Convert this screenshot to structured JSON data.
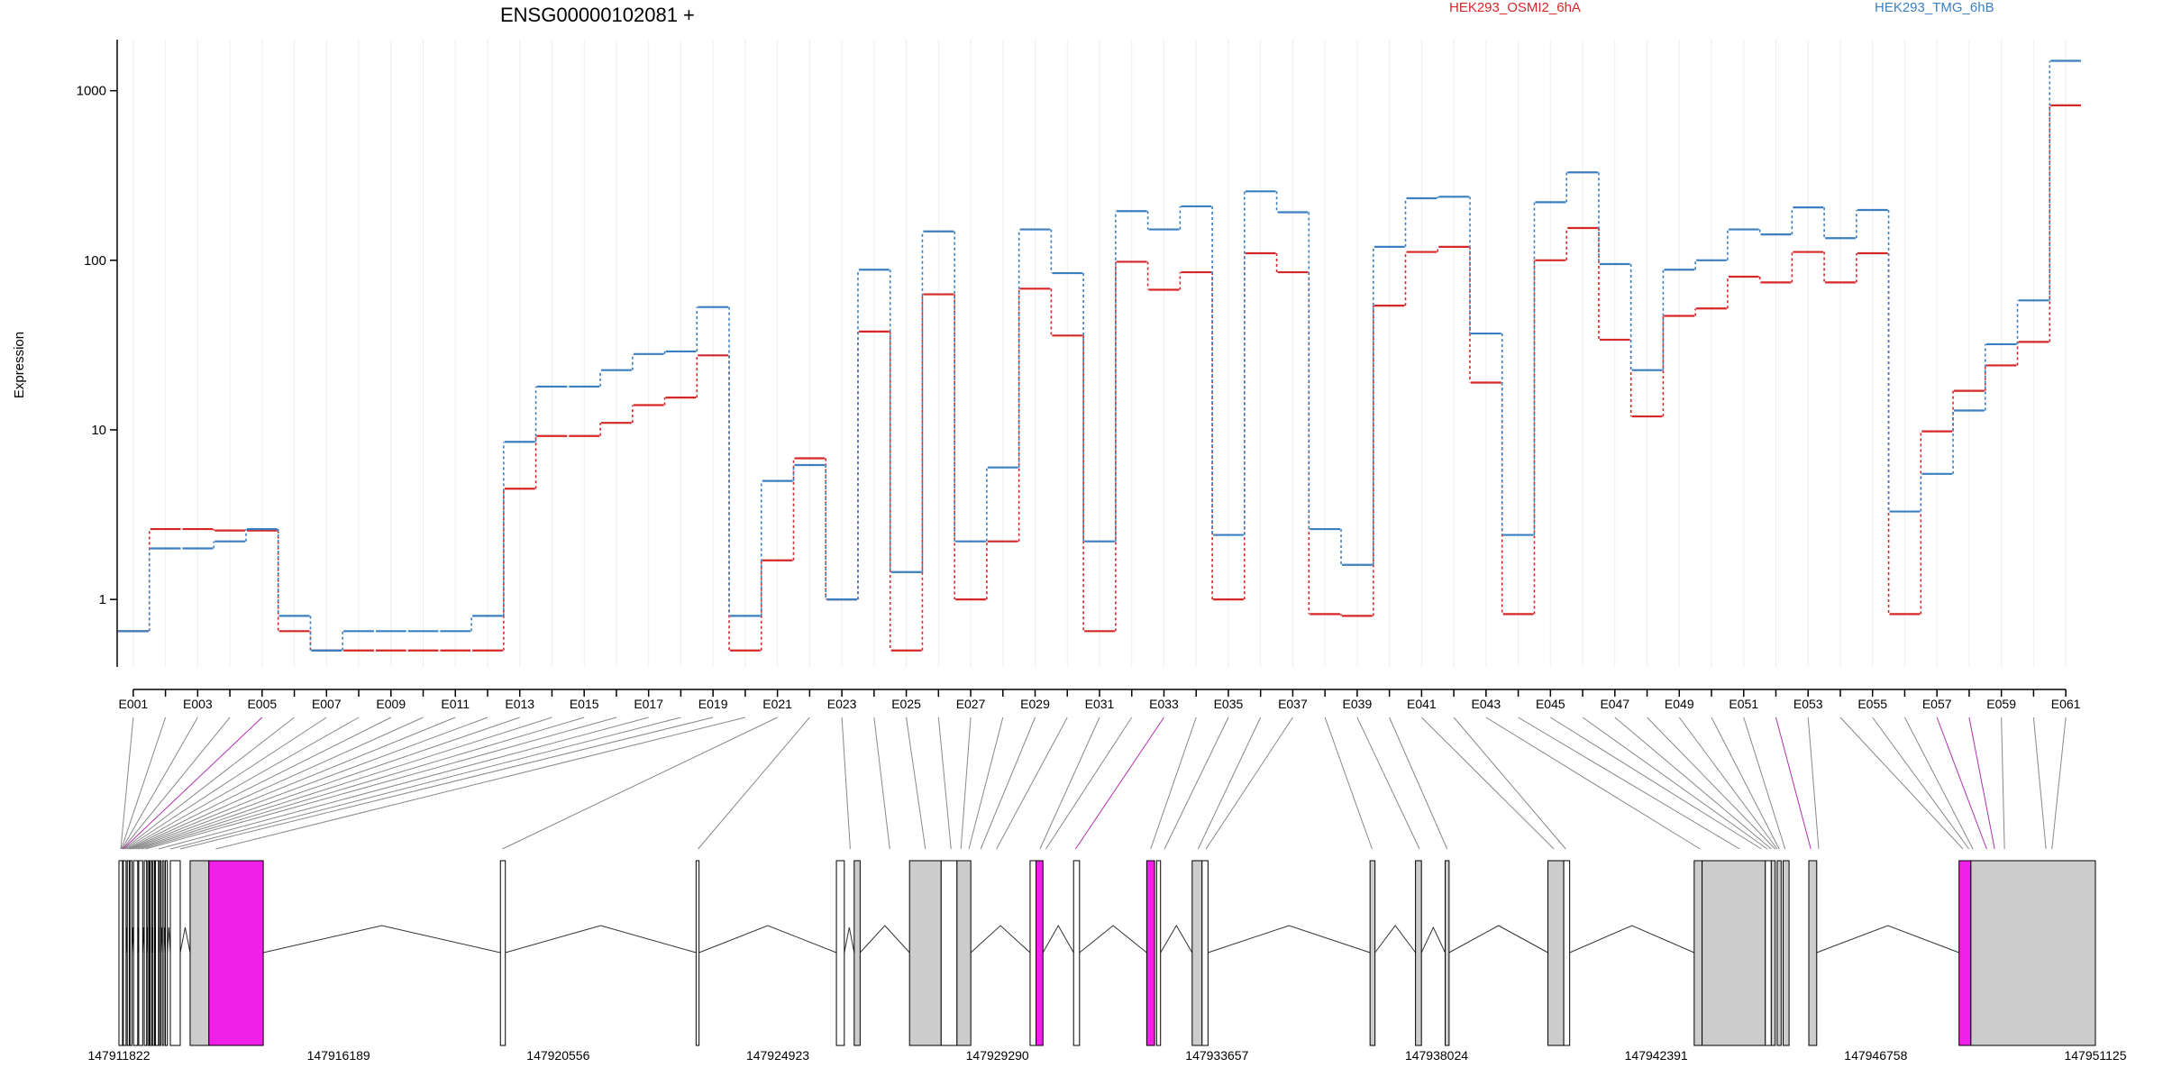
{
  "header": {
    "gene_title": "ENSG00000102081 +",
    "legend": [
      "HEK293_OSMI2_6hA",
      "HEK293_TMG_6hB"
    ]
  },
  "colors": {
    "series_a": "#d62728",
    "series_b": "#3c7fc0",
    "exon_normal": "#cccccc",
    "exon_white": "#ffffff",
    "exon_highlight": "#f020e8",
    "connector": "#888888",
    "connector_highlight": "#b030b0"
  },
  "chart_data": {
    "type": "line",
    "title": "ENSG00000102081 +",
    "ylabel": "Expression",
    "yscale": "log",
    "ylim": [
      0.4,
      2000
    ],
    "yticks": [
      1,
      10,
      100,
      1000
    ],
    "ytick_labels": [
      "1",
      "10",
      "100",
      "1000"
    ],
    "x": [
      "E001",
      "E002",
      "E003",
      "E004",
      "E005",
      "E006",
      "E007",
      "E008",
      "E009",
      "E010",
      "E011",
      "E012",
      "E013",
      "E014",
      "E015",
      "E016",
      "E017",
      "E018",
      "E019",
      "E020",
      "E021",
      "E022",
      "E023",
      "E024",
      "E025",
      "E026",
      "E027",
      "E028",
      "E029",
      "E030",
      "E031",
      "E032",
      "E033",
      "E034",
      "E035",
      "E036",
      "E037",
      "E038",
      "E039",
      "E040",
      "E041",
      "E042",
      "E043",
      "E044",
      "E045",
      "E046",
      "E047",
      "E048",
      "E049",
      "E050",
      "E051",
      "E052",
      "E053",
      "E054",
      "E055",
      "E056",
      "E057",
      "E058",
      "E059",
      "E060",
      "E061"
    ],
    "xtick_labels": [
      "E001",
      "E003",
      "E005",
      "E007",
      "E009",
      "E011",
      "E013",
      "E015",
      "E017",
      "E019",
      "E021",
      "E023",
      "E025",
      "E027",
      "E029",
      "E031",
      "E033",
      "E035",
      "E037",
      "E039",
      "E041",
      "E043",
      "E045",
      "E047",
      "E049",
      "E051",
      "E053",
      "E055",
      "E057",
      "E059",
      "E061"
    ],
    "series": [
      {
        "name": "HEK293_OSMI2_6hA",
        "values": [
          0.65,
          2.6,
          2.6,
          2.55,
          2.55,
          0.65,
          0.5,
          0.5,
          0.5,
          0.5,
          0.5,
          0.5,
          4.5,
          9.2,
          9.2,
          11,
          14,
          15.5,
          27.5,
          0.5,
          1.7,
          6.8,
          1.0,
          38,
          0.5,
          63,
          1.0,
          2.2,
          68,
          36,
          0.65,
          98,
          67,
          85,
          1.0,
          110,
          85,
          0.82,
          0.8,
          54,
          112,
          120,
          19,
          0.82,
          100,
          155,
          34,
          12,
          47,
          52,
          80,
          74,
          112,
          74,
          110,
          0.82,
          9.8,
          17,
          24,
          33,
          820
        ]
      },
      {
        "name": "HEK293_TMG_6hB",
        "values": [
          0.65,
          2.0,
          2.0,
          2.2,
          2.6,
          0.8,
          0.5,
          0.65,
          0.65,
          0.65,
          0.65,
          0.8,
          8.5,
          18,
          18,
          22.5,
          28,
          29,
          53,
          0.8,
          5.0,
          6.2,
          1.0,
          88,
          1.45,
          148,
          2.2,
          6.0,
          152,
          84,
          2.2,
          195,
          152,
          208,
          2.4,
          255,
          192,
          2.6,
          1.6,
          120,
          232,
          237,
          37,
          2.4,
          220,
          330,
          95,
          22.5,
          88,
          100,
          152,
          142,
          205,
          135,
          198,
          3.3,
          5.5,
          13,
          32,
          58,
          1500
        ]
      }
    ]
  },
  "gene_model": {
    "axis_labels": [
      "147911822",
      "147916189",
      "147920556",
      "147924923",
      "147929290",
      "147933657",
      "147938024",
      "147942391",
      "147946758",
      "147951125"
    ],
    "exons": [
      {
        "start": 0.0,
        "end": 0.18,
        "fill": "white"
      },
      {
        "start": 0.22,
        "end": 0.36,
        "fill": "white"
      },
      {
        "start": 0.42,
        "end": 0.52,
        "fill": "white"
      },
      {
        "start": 0.56,
        "end": 0.66,
        "fill": "white"
      },
      {
        "start": 0.74,
        "end": 0.95,
        "fill": "white"
      },
      {
        "start": 1.0,
        "end": 1.2,
        "fill": "white"
      },
      {
        "start": 1.28,
        "end": 1.4,
        "fill": "white"
      },
      {
        "start": 1.46,
        "end": 1.52,
        "fill": "white"
      },
      {
        "start": 1.58,
        "end": 1.66,
        "fill": "white"
      },
      {
        "start": 1.72,
        "end": 1.8,
        "fill": "white"
      },
      {
        "start": 1.85,
        "end": 2.0,
        "fill": "white"
      },
      {
        "start": 2.05,
        "end": 2.12,
        "fill": "white"
      },
      {
        "start": 2.2,
        "end": 2.28,
        "fill": "white"
      },
      {
        "start": 2.35,
        "end": 2.45,
        "fill": "white"
      },
      {
        "start": 2.6,
        "end": 3.1,
        "fill": "white"
      },
      {
        "start": 3.6,
        "end": 4.55,
        "fill": "normal"
      },
      {
        "start": 4.55,
        "end": 7.3,
        "fill": "highlight"
      },
      {
        "start": 19.3,
        "end": 19.55,
        "fill": "white"
      },
      {
        "start": 29.2,
        "end": 29.35,
        "fill": "white"
      },
      {
        "start": 36.3,
        "end": 36.7,
        "fill": "white"
      },
      {
        "start": 37.2,
        "end": 37.5,
        "fill": "normal"
      },
      {
        "start": 40.0,
        "end": 41.6,
        "fill": "normal"
      },
      {
        "start": 41.6,
        "end": 42.4,
        "fill": "white"
      },
      {
        "start": 42.4,
        "end": 43.1,
        "fill": "normal"
      },
      {
        "start": 46.1,
        "end": 46.4,
        "fill": "white"
      },
      {
        "start": 46.4,
        "end": 46.75,
        "fill": "highlight"
      },
      {
        "start": 48.3,
        "end": 48.6,
        "fill": "white"
      },
      {
        "start": 52.0,
        "end": 52.4,
        "fill": "highlight"
      },
      {
        "start": 52.5,
        "end": 52.7,
        "fill": "white"
      },
      {
        "start": 54.3,
        "end": 54.8,
        "fill": "normal"
      },
      {
        "start": 54.8,
        "end": 55.1,
        "fill": "white"
      },
      {
        "start": 63.3,
        "end": 63.55,
        "fill": "normal"
      },
      {
        "start": 65.6,
        "end": 65.9,
        "fill": "normal"
      },
      {
        "start": 67.1,
        "end": 67.3,
        "fill": "normal"
      },
      {
        "start": 72.3,
        "end": 73.1,
        "fill": "normal"
      },
      {
        "start": 73.1,
        "end": 73.4,
        "fill": "white"
      },
      {
        "start": 79.7,
        "end": 80.1,
        "fill": "normal"
      },
      {
        "start": 80.1,
        "end": 83.3,
        "fill": "normal"
      },
      {
        "start": 83.3,
        "end": 83.6,
        "fill": "white"
      },
      {
        "start": 83.6,
        "end": 83.8,
        "fill": "normal"
      },
      {
        "start": 83.9,
        "end": 84.1,
        "fill": "normal"
      },
      {
        "start": 84.2,
        "end": 84.5,
        "fill": "normal"
      },
      {
        "start": 85.5,
        "end": 85.9,
        "fill": "normal"
      },
      {
        "start": 93.1,
        "end": 93.7,
        "fill": "highlight"
      },
      {
        "start": 93.7,
        "end": 100.0,
        "fill": "normal"
      }
    ],
    "introns": [
      [
        0.18,
        0.22
      ],
      [
        0.36,
        0.42
      ],
      [
        0.52,
        0.56
      ],
      [
        0.66,
        0.74
      ],
      [
        0.95,
        1.0
      ],
      [
        1.2,
        1.28
      ],
      [
        1.4,
        1.46
      ],
      [
        1.52,
        1.58
      ],
      [
        1.66,
        1.72
      ],
      [
        1.8,
        1.85
      ],
      [
        2.0,
        2.05
      ],
      [
        2.12,
        2.2
      ],
      [
        2.28,
        2.35
      ],
      [
        2.45,
        2.6
      ],
      [
        3.1,
        3.6
      ],
      [
        7.3,
        19.3
      ],
      [
        19.55,
        29.2
      ],
      [
        29.35,
        36.3
      ],
      [
        36.7,
        37.2
      ],
      [
        37.5,
        40.0
      ],
      [
        43.1,
        46.1
      ],
      [
        46.75,
        48.3
      ],
      [
        48.6,
        52.0
      ],
      [
        52.7,
        54.3
      ],
      [
        55.1,
        63.3
      ],
      [
        63.55,
        65.6
      ],
      [
        65.9,
        67.1
      ],
      [
        67.3,
        72.3
      ],
      [
        73.4,
        79.7
      ],
      [
        85.9,
        93.1
      ]
    ],
    "connector_targets": [
      0.09,
      0.12,
      0.15,
      0.18,
      0.21,
      0.26,
      0.32,
      0.39,
      0.46,
      0.54,
      0.62,
      0.72,
      0.85,
      0.98,
      1.15,
      1.35,
      2.0,
      2.6,
      3.1,
      4.9,
      19.4,
      29.3,
      37.0,
      39.0,
      40.8,
      42.1,
      42.6,
      43.0,
      43.6,
      44.4,
      46.6,
      46.9,
      48.4,
      52.2,
      52.9,
      54.6,
      55.0,
      63.4,
      65.8,
      67.2,
      72.6,
      73.2,
      80.0,
      82.0,
      83.1,
      83.4,
      83.6,
      83.8,
      83.9,
      84.0,
      84.3,
      85.6,
      86.0,
      93.3,
      93.6,
      93.8,
      94.5,
      94.9,
      95.4,
      97.5,
      97.8
    ],
    "highlight_connectors": [
      4,
      32,
      51,
      56,
      57
    ]
  }
}
